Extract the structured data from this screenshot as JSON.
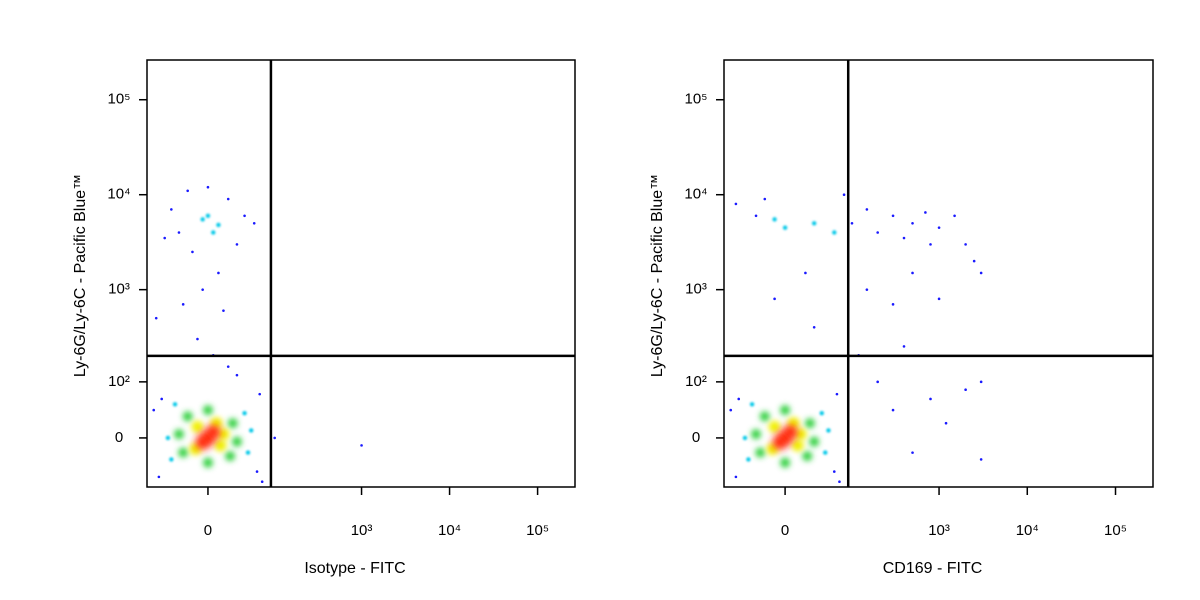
{
  "chart_data": [
    {
      "type": "scatter",
      "xlabel": "Isotype - FITC",
      "ylabel": "Ly-6G/Ly-6C - Pacific Blue™",
      "x_scale": "asinh",
      "x_linear_width": 36,
      "y_scale": "asinh",
      "y_linear_width": 55,
      "xlim": [
        -85,
        266000
      ],
      "ylim": [
        -82,
        262000
      ],
      "xticks": [
        0,
        {
          "value": 1000,
          "label": "10³"
        },
        {
          "value": 10000,
          "label": "10⁴"
        },
        {
          "value": 100000,
          "label": "10⁵"
        }
      ],
      "yticks": [
        0,
        {
          "value": 100,
          "label": "10²"
        },
        {
          "value": 1000,
          "label": "10³"
        },
        {
          "value": 10000,
          "label": "10⁴"
        },
        {
          "value": 100000,
          "label": "10⁵"
        }
      ],
      "quadrant_gate": {
        "x": 90,
        "y": 197
      },
      "series": [
        {
          "color": "#1a1aff",
          "x": [
            -60,
            60,
            -55,
            65,
            20,
            -10,
            15,
            -5,
            10,
            -15,
            30,
            -30,
            40,
            -40,
            20,
            -20,
            0,
            55,
            -50,
            5,
            -25,
            30,
            70,
            -70,
            100,
            1000,
            -65
          ],
          "y": [
            -60,
            -50,
            60,
            70,
            150,
            300,
            600,
            1000,
            1500,
            2500,
            3000,
            4000,
            6000,
            7000,
            9000,
            11000,
            12000,
            5000,
            3500,
            200,
            700,
            120,
            -70,
            40,
            0,
            -10,
            500
          ]
        },
        {
          "color": "#00c8e8",
          "x": [
            -40,
            40,
            -35,
            45,
            10,
            -5,
            0,
            5,
            -45,
            50
          ],
          "y": [
            -30,
            35,
            50,
            -20,
            4800,
            5500,
            6000,
            4000,
            0,
            10
          ]
        },
        {
          "color": "#30d040",
          "x": [
            -25,
            25,
            -20,
            22,
            0,
            -30,
            30,
            0
          ],
          "y": [
            -20,
            20,
            30,
            -25,
            40,
            5,
            -5,
            -35
          ]
        },
        {
          "color": "#f0f000",
          "x": [
            -10,
            12,
            8,
            -12,
            15
          ],
          "y": [
            15,
            -10,
            20,
            -15,
            5
          ]
        },
        {
          "color": "#ff2000",
          "x": [
            0,
            5,
            -5
          ],
          "y": [
            0,
            8,
            -6
          ]
        }
      ]
    },
    {
      "type": "scatter",
      "xlabel": "CD169 - FITC",
      "ylabel": "Ly-6G/Ly-6C - Pacific Blue™",
      "x_scale": "asinh",
      "x_linear_width": 36,
      "y_scale": "asinh",
      "y_linear_width": 55,
      "xlim": [
        -85,
        266000
      ],
      "ylim": [
        -82,
        262000
      ],
      "xticks": [
        0,
        {
          "value": 1000,
          "label": "10³"
        },
        {
          "value": 10000,
          "label": "10⁴"
        },
        {
          "value": 100000,
          "label": "10⁵"
        }
      ],
      "yticks": [
        0,
        {
          "value": 100,
          "label": "10²"
        },
        {
          "value": 1000,
          "label": "10³"
        },
        {
          "value": 10000,
          "label": "10⁴"
        },
        {
          "value": 100000,
          "label": "10⁵"
        }
      ],
      "quadrant_gate": {
        "x": 90,
        "y": 197
      },
      "series": [
        {
          "color": "#1a1aff",
          "x": [
            -60,
            60,
            -55,
            65,
            -30,
            -60,
            100,
            150,
            200,
            300,
            400,
            500,
            700,
            800,
            1000,
            1500,
            2000,
            2500,
            3000,
            -20,
            80,
            20,
            -10,
            30,
            150,
            300,
            500,
            1000,
            200,
            300,
            500,
            800,
            1200,
            2000,
            3000,
            3000,
            120,
            400,
            -70,
            70
          ],
          "y": [
            -60,
            -50,
            60,
            70,
            6000,
            8000,
            5000,
            7000,
            4000,
            6000,
            3500,
            5000,
            6500,
            3000,
            4500,
            6000,
            3000,
            2000,
            1500,
            9000,
            10000,
            1500,
            800,
            400,
            1000,
            700,
            1500,
            800,
            100,
            40,
            -20,
            60,
            20,
            80,
            -30,
            100,
            200,
            250,
            40,
            -70
          ]
        },
        {
          "color": "#00c8e8",
          "x": [
            -40,
            40,
            -35,
            45,
            0,
            -10,
            30,
            60,
            -45,
            50
          ],
          "y": [
            -30,
            35,
            50,
            -20,
            4500,
            5500,
            5000,
            4000,
            0,
            10
          ]
        },
        {
          "color": "#30d040",
          "x": [
            -25,
            25,
            -20,
            22,
            0,
            -30,
            30,
            0
          ],
          "y": [
            -20,
            20,
            30,
            -25,
            40,
            5,
            -5,
            -35
          ]
        },
        {
          "color": "#f0f000",
          "x": [
            -10,
            12,
            8,
            -12,
            15
          ],
          "y": [
            15,
            -10,
            20,
            -15,
            5
          ]
        },
        {
          "color": "#ff2000",
          "x": [
            0,
            5,
            -5
          ],
          "y": [
            0,
            8,
            -6
          ]
        }
      ]
    }
  ]
}
